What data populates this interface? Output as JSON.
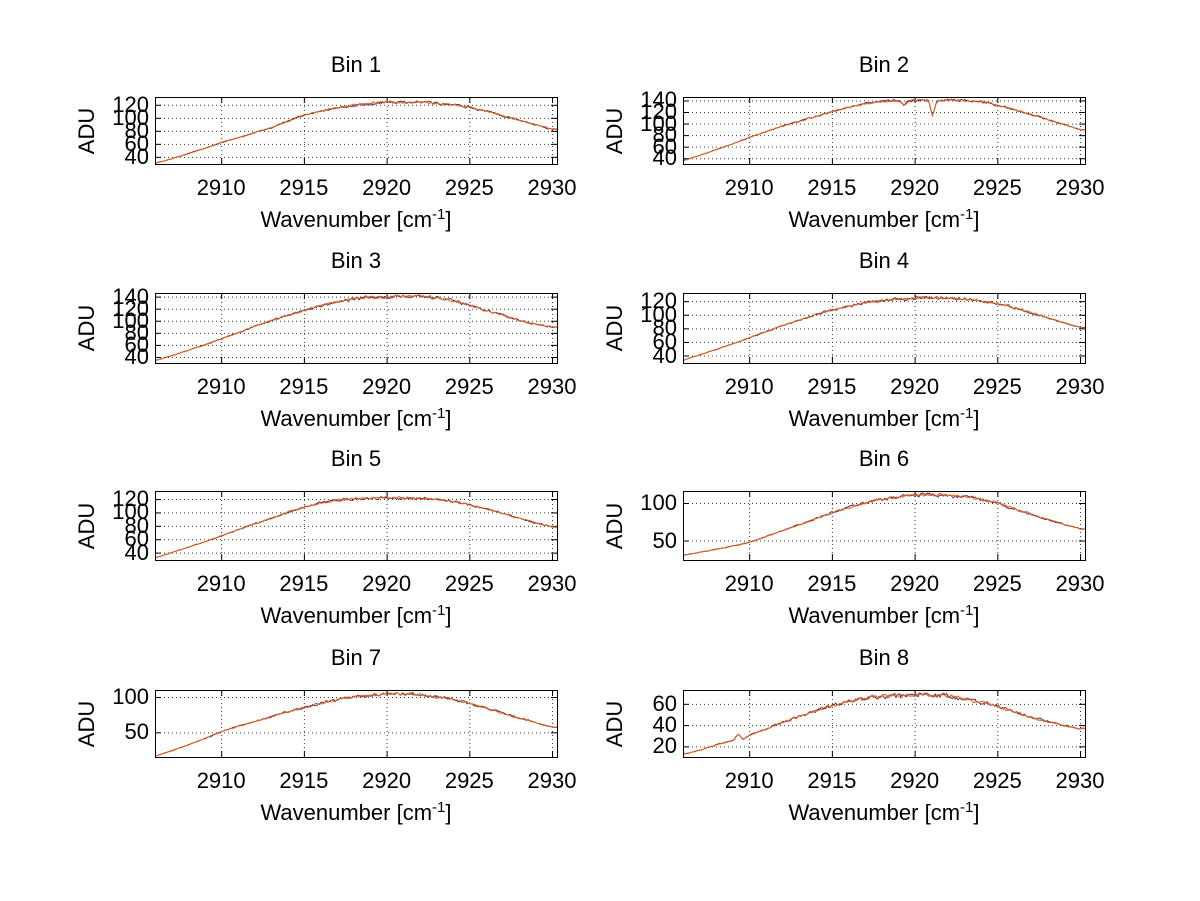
{
  "figure": {
    "ylabel": "ADU",
    "xlabel": {
      "pre": "Wavenumber [cm",
      "sup": "-1",
      "post": "]"
    },
    "line_color": "#d96418",
    "underlay_color": "#6b2a60",
    "axis_color": "#000000",
    "grid_color": "#3a3a3a",
    "background": "#ffffff"
  },
  "chart_data": [
    {
      "type": "line",
      "title": "Bin 1",
      "xlabel": "Wavenumber [cm-1]",
      "ylabel": "ADU",
      "xlim": [
        2906,
        2930.3
      ],
      "ylim": [
        29,
        132
      ],
      "grid": true,
      "legend": "none",
      "xticks": [
        2910,
        2915,
        2920,
        2925,
        2930
      ],
      "yticks": [
        40,
        60,
        80,
        100,
        120
      ],
      "noise": 1.6,
      "series_points": [
        [
          2906,
          31
        ],
        [
          2907,
          38
        ],
        [
          2908,
          46
        ],
        [
          2909,
          54
        ],
        [
          2910,
          63
        ],
        [
          2911,
          70
        ],
        [
          2912,
          78
        ],
        [
          2913,
          85
        ],
        [
          2914,
          96
        ],
        [
          2915,
          105
        ],
        [
          2916,
          111
        ],
        [
          2917,
          116
        ],
        [
          2918,
          120
        ],
        [
          2919,
          123
        ],
        [
          2920,
          125
        ],
        [
          2921,
          124
        ],
        [
          2922,
          125
        ],
        [
          2923,
          123
        ],
        [
          2924,
          121
        ],
        [
          2925,
          117
        ],
        [
          2926,
          111
        ],
        [
          2927,
          104
        ],
        [
          2928,
          97
        ],
        [
          2929,
          90
        ],
        [
          2930,
          83
        ]
      ]
    },
    {
      "type": "line",
      "title": "Bin 2",
      "xlabel": "Wavenumber [cm-1]",
      "ylabel": "ADU",
      "xlim": [
        2906,
        2930.3
      ],
      "ylim": [
        30,
        146
      ],
      "grid": true,
      "legend": "none",
      "xticks": [
        2910,
        2915,
        2920,
        2925,
        2930
      ],
      "yticks": [
        40,
        60,
        80,
        100,
        120,
        140
      ],
      "noise": 1.6,
      "series_points": [
        [
          2906,
          37
        ],
        [
          2907,
          46
        ],
        [
          2908,
          56
        ],
        [
          2909,
          66
        ],
        [
          2910,
          77
        ],
        [
          2911,
          87
        ],
        [
          2912,
          97
        ],
        [
          2913,
          105
        ],
        [
          2914,
          113
        ],
        [
          2915,
          122
        ],
        [
          2916,
          129
        ],
        [
          2917,
          135
        ],
        [
          2918,
          139
        ],
        [
          2919,
          141
        ],
        [
          2919.3,
          132
        ],
        [
          2919.6,
          140
        ],
        [
          2920,
          141
        ],
        [
          2920.8,
          142
        ],
        [
          2921.05,
          114
        ],
        [
          2921.3,
          140
        ],
        [
          2922,
          142
        ],
        [
          2923,
          141
        ],
        [
          2924,
          139
        ],
        [
          2925,
          133
        ],
        [
          2926,
          125
        ],
        [
          2927,
          117
        ],
        [
          2928,
          108
        ],
        [
          2929,
          99
        ],
        [
          2930,
          90
        ]
      ]
    },
    {
      "type": "line",
      "title": "Bin 3",
      "xlabel": "Wavenumber [cm-1]",
      "ylabel": "ADU",
      "xlim": [
        2906,
        2930.3
      ],
      "ylim": [
        30,
        146
      ],
      "grid": true,
      "legend": "none",
      "xticks": [
        2910,
        2915,
        2920,
        2925,
        2930
      ],
      "yticks": [
        40,
        60,
        80,
        100,
        120,
        140
      ],
      "noise": 2.2,
      "series_points": [
        [
          2906,
          35
        ],
        [
          2907,
          43
        ],
        [
          2908,
          52
        ],
        [
          2909,
          61
        ],
        [
          2910,
          71
        ],
        [
          2911,
          81
        ],
        [
          2912,
          92
        ],
        [
          2913,
          101
        ],
        [
          2914,
          110
        ],
        [
          2915,
          118
        ],
        [
          2916,
          126
        ],
        [
          2917,
          132
        ],
        [
          2918,
          137
        ],
        [
          2919,
          140
        ],
        [
          2920,
          141
        ],
        [
          2921,
          142
        ],
        [
          2922,
          141
        ],
        [
          2923,
          139
        ],
        [
          2924,
          134
        ],
        [
          2925,
          127
        ],
        [
          2926,
          118
        ],
        [
          2927,
          110
        ],
        [
          2928,
          101
        ],
        [
          2929,
          95
        ],
        [
          2930,
          90
        ]
      ]
    },
    {
      "type": "line",
      "title": "Bin 4",
      "xlabel": "Wavenumber [cm-1]",
      "ylabel": "ADU",
      "xlim": [
        2906,
        2930.3
      ],
      "ylim": [
        29,
        132
      ],
      "grid": true,
      "legend": "none",
      "xticks": [
        2910,
        2915,
        2920,
        2925,
        2930
      ],
      "yticks": [
        40,
        60,
        80,
        100,
        120
      ],
      "noise": 1.8,
      "series_points": [
        [
          2906,
          34
        ],
        [
          2907,
          42
        ],
        [
          2908,
          50
        ],
        [
          2909,
          58
        ],
        [
          2910,
          67
        ],
        [
          2911,
          76
        ],
        [
          2912,
          85
        ],
        [
          2913,
          93
        ],
        [
          2914,
          101
        ],
        [
          2915,
          108
        ],
        [
          2916,
          114
        ],
        [
          2917,
          119
        ],
        [
          2918,
          122
        ],
        [
          2919,
          124
        ],
        [
          2920,
          125
        ],
        [
          2921,
          126
        ],
        [
          2922,
          125
        ],
        [
          2923,
          124
        ],
        [
          2924,
          121
        ],
        [
          2925,
          117
        ],
        [
          2926,
          111
        ],
        [
          2927,
          104
        ],
        [
          2928,
          96
        ],
        [
          2929,
          89
        ],
        [
          2930,
          82
        ]
      ]
    },
    {
      "type": "line",
      "title": "Bin 5",
      "xlabel": "Wavenumber [cm-1]",
      "ylabel": "ADU",
      "xlim": [
        2906,
        2930.3
      ],
      "ylim": [
        29,
        132
      ],
      "grid": true,
      "legend": "none",
      "xticks": [
        2910,
        2915,
        2920,
        2925,
        2930
      ],
      "yticks": [
        40,
        60,
        80,
        100,
        120
      ],
      "noise": 1.5,
      "series_points": [
        [
          2906,
          33
        ],
        [
          2907,
          41
        ],
        [
          2908,
          49
        ],
        [
          2909,
          57
        ],
        [
          2910,
          66
        ],
        [
          2911,
          75
        ],
        [
          2912,
          84
        ],
        [
          2913,
          92
        ],
        [
          2914,
          101
        ],
        [
          2915,
          109
        ],
        [
          2916,
          115
        ],
        [
          2917,
          119
        ],
        [
          2918,
          121
        ],
        [
          2919,
          122
        ],
        [
          2920,
          123
        ],
        [
          2921,
          122
        ],
        [
          2922,
          122
        ],
        [
          2923,
          120
        ],
        [
          2924,
          117
        ],
        [
          2925,
          112
        ],
        [
          2926,
          106
        ],
        [
          2927,
          99
        ],
        [
          2928,
          92
        ],
        [
          2929,
          85
        ],
        [
          2930,
          79
        ]
      ]
    },
    {
      "type": "line",
      "title": "Bin 6",
      "xlabel": "Wavenumber [cm-1]",
      "ylabel": "ADU",
      "xlim": [
        2906,
        2930.3
      ],
      "ylim": [
        24,
        116
      ],
      "grid": true,
      "legend": "none",
      "xticks": [
        2910,
        2915,
        2920,
        2925,
        2930
      ],
      "yticks": [
        50,
        100
      ],
      "noise": 1.8,
      "series_points": [
        [
          2906,
          31
        ],
        [
          2908,
          39
        ],
        [
          2910,
          48
        ],
        [
          2911,
          56
        ],
        [
          2912,
          64
        ],
        [
          2913,
          72
        ],
        [
          2914,
          80
        ],
        [
          2915,
          88
        ],
        [
          2916,
          95
        ],
        [
          2917,
          101
        ],
        [
          2918,
          106
        ],
        [
          2919,
          109
        ],
        [
          2920,
          111
        ],
        [
          2921,
          112
        ],
        [
          2922,
          111
        ],
        [
          2923,
          109
        ],
        [
          2924,
          105
        ],
        [
          2925,
          100
        ],
        [
          2926,
          93
        ],
        [
          2927,
          86
        ],
        [
          2928,
          79
        ],
        [
          2929,
          72
        ],
        [
          2930,
          66
        ]
      ]
    },
    {
      "type": "line",
      "title": "Bin 7",
      "xlabel": "Wavenumber [cm-1]",
      "ylabel": "ADU",
      "xlim": [
        2906,
        2930.3
      ],
      "ylim": [
        15,
        110
      ],
      "grid": true,
      "legend": "none",
      "xticks": [
        2910,
        2915,
        2920,
        2925,
        2930
      ],
      "yticks": [
        50,
        100
      ],
      "noise": 1.8,
      "series_points": [
        [
          2906,
          17
        ],
        [
          2907,
          25
        ],
        [
          2908,
          33
        ],
        [
          2909,
          42
        ],
        [
          2910,
          52
        ],
        [
          2911,
          59
        ],
        [
          2912,
          66
        ],
        [
          2913,
          73
        ],
        [
          2914,
          80
        ],
        [
          2915,
          86
        ],
        [
          2916,
          92
        ],
        [
          2917,
          97
        ],
        [
          2918,
          101
        ],
        [
          2919,
          103
        ],
        [
          2920,
          105
        ],
        [
          2921,
          105
        ],
        [
          2922,
          104
        ],
        [
          2923,
          101
        ],
        [
          2924,
          97
        ],
        [
          2925,
          92
        ],
        [
          2926,
          85
        ],
        [
          2927,
          78
        ],
        [
          2928,
          71
        ],
        [
          2929,
          64
        ],
        [
          2930,
          58
        ]
      ]
    },
    {
      "type": "line",
      "title": "Bin 8",
      "xlabel": "Wavenumber [cm-1]",
      "ylabel": "ADU",
      "xlim": [
        2906,
        2930.3
      ],
      "ylim": [
        10,
        73
      ],
      "grid": true,
      "legend": "none",
      "xticks": [
        2910,
        2915,
        2920,
        2925,
        2930
      ],
      "yticks": [
        20,
        40,
        60
      ],
      "noise": 1.6,
      "series_points": [
        [
          2906,
          13
        ],
        [
          2907,
          17
        ],
        [
          2908,
          22
        ],
        [
          2909,
          26
        ],
        [
          2909.3,
          32
        ],
        [
          2909.6,
          27
        ],
        [
          2910,
          31
        ],
        [
          2911,
          37
        ],
        [
          2912,
          43
        ],
        [
          2913,
          49
        ],
        [
          2914,
          54
        ],
        [
          2915,
          59
        ],
        [
          2916,
          63
        ],
        [
          2917,
          66
        ],
        [
          2918,
          68
        ],
        [
          2919,
          68
        ],
        [
          2920,
          69
        ],
        [
          2921,
          69
        ],
        [
          2922,
          68
        ],
        [
          2923,
          65
        ],
        [
          2924,
          62
        ],
        [
          2925,
          58
        ],
        [
          2926,
          53
        ],
        [
          2927,
          48
        ],
        [
          2928,
          44
        ],
        [
          2929,
          40
        ],
        [
          2930,
          37
        ]
      ]
    }
  ]
}
